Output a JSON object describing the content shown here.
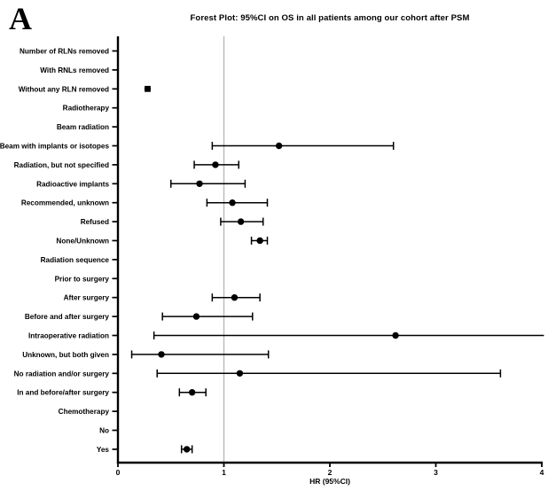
{
  "panel": {
    "label": "A"
  },
  "chart_data": {
    "type": "forest",
    "title": "Forest Plot: 95%CI on OS in all patients among our cohort after PSM",
    "xlabel": "HR (95%CI)",
    "xlim": [
      0,
      4
    ],
    "xticks": [
      0,
      1,
      2,
      3,
      4
    ],
    "refline_x": 1,
    "grid": false,
    "legend": "none",
    "rows": [
      {
        "label": "Number of RLNs removed"
      },
      {
        "label": "With RNLs removed"
      },
      {
        "label": "Without any RLN removed",
        "hr": 0.28,
        "lo": 0.25,
        "hi": 0.31,
        "marker": "square",
        "caps": false
      },
      {
        "label": "Radiotherapy"
      },
      {
        "label": "Beam radiation"
      },
      {
        "label": "Beam with implants or isotopes",
        "hr": 1.52,
        "lo": 0.89,
        "hi": 2.6
      },
      {
        "label": "Radiation, but not specified",
        "hr": 0.92,
        "lo": 0.72,
        "hi": 1.14
      },
      {
        "label": "Radioactive implants",
        "hr": 0.77,
        "lo": 0.5,
        "hi": 1.2
      },
      {
        "label": "Recommended, unknown",
        "hr": 1.08,
        "lo": 0.84,
        "hi": 1.41
      },
      {
        "label": "Refused",
        "hr": 1.16,
        "lo": 0.97,
        "hi": 1.37
      },
      {
        "label": "None/Unknown",
        "hr": 1.34,
        "lo": 1.26,
        "hi": 1.41
      },
      {
        "label": "Radiation sequence"
      },
      {
        "label": "Prior to surgery"
      },
      {
        "label": "After surgery",
        "hr": 1.1,
        "lo": 0.89,
        "hi": 1.34
      },
      {
        "label": "Before and after surgery",
        "hr": 0.74,
        "lo": 0.42,
        "hi": 1.27
      },
      {
        "label": "Intraoperative radiation",
        "hr": 2.62,
        "lo": 0.34,
        "hi": 4.02,
        "hi_cap": false
      },
      {
        "label": "Unknown, but both given",
        "hr": 0.41,
        "lo": 0.13,
        "hi": 1.42
      },
      {
        "label": "No radiation and/or surgery",
        "hr": 1.15,
        "lo": 0.37,
        "hi": 3.61
      },
      {
        "label": "In and before/after surgery",
        "hr": 0.7,
        "lo": 0.58,
        "hi": 0.83
      },
      {
        "label": "Chemotherapy"
      },
      {
        "label": "No"
      },
      {
        "label": "Yes",
        "hr": 0.65,
        "lo": 0.6,
        "hi": 0.7
      }
    ],
    "colors": {
      "data": "#000000",
      "refline": "#b9b9b9",
      "background": "#ffffff"
    }
  }
}
